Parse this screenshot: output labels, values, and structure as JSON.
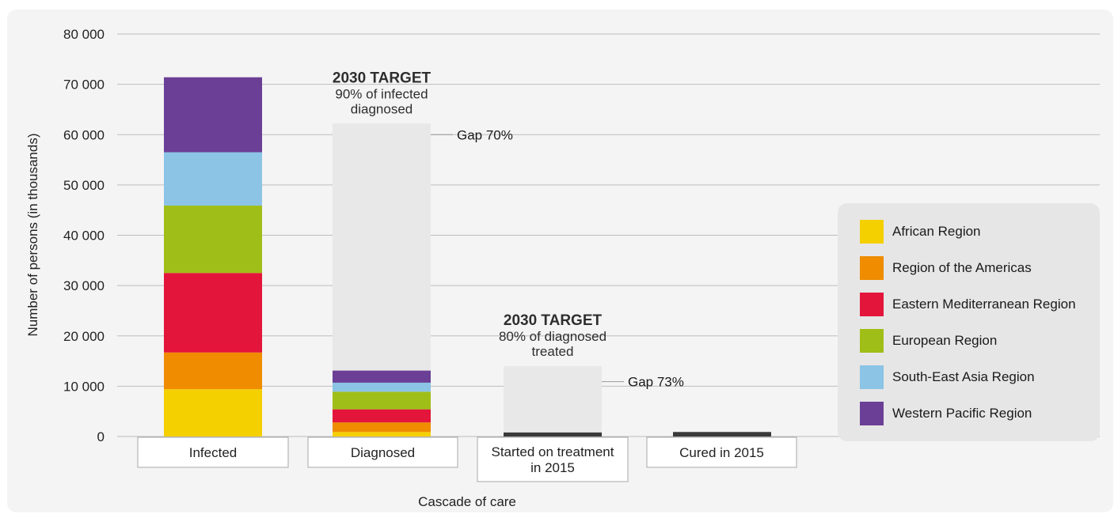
{
  "chart_data": {
    "type": "bar",
    "stacked": true,
    "ylabel": "Number of persons (in thousands)",
    "xlabel": "Cascade of care",
    "ylim": [
      0,
      80000
    ],
    "yticks": [
      0,
      10000,
      20000,
      30000,
      40000,
      50000,
      60000,
      70000,
      80000
    ],
    "ytick_labels": [
      "0",
      "10 000",
      "20 000",
      "30 000",
      "40 000",
      "50 000",
      "60 000",
      "70 000",
      "80 000"
    ],
    "grid": true,
    "legend_position": "right",
    "categories": [
      "Infected",
      "Diagnosed",
      "Started on treatment\nin 2015",
      "Cured in 2015"
    ],
    "series": [
      {
        "name": "African Region",
        "color": "#f5d000",
        "values": [
          9400,
          900,
          null,
          null
        ]
      },
      {
        "name": "Region of the Americas",
        "color": "#ef8c00",
        "values": [
          7300,
          1900,
          null,
          null
        ]
      },
      {
        "name": "Eastern Mediterranean Region",
        "color": "#e4153a",
        "values": [
          15800,
          2600,
          null,
          null
        ]
      },
      {
        "name": "European Region",
        "color": "#a0be18",
        "values": [
          13400,
          3500,
          null,
          null
        ]
      },
      {
        "name": "South-East Asia Region",
        "color": "#8bc4e5",
        "values": [
          10600,
          1800,
          null,
          null
        ]
      },
      {
        "name": "Western Pacific Region",
        "color": "#6b3f96",
        "values": [
          14900,
          2400,
          null,
          null
        ]
      }
    ],
    "totals_only": [
      {
        "category": "Started on treatment\nin 2015",
        "value": 800,
        "color": "#3a3a3a"
      },
      {
        "category": "Cured in 2015",
        "value": 900,
        "color": "#3a3a3a"
      }
    ],
    "targets": [
      {
        "category": "Diagnosed",
        "value": 62200,
        "color": "#e8e8e8",
        "title": "2030 TARGET",
        "text": "90% of infected\ndiagnosed",
        "gap_label": "Gap 70%",
        "gap_value": 60000
      },
      {
        "category": "Started on treatment\nin 2015",
        "value": 14000,
        "color": "#e8e8e8",
        "title": "2030 TARGET",
        "text": "80% of diagnosed\ntreated",
        "gap_label": "Gap 73%",
        "gap_value": 10900
      }
    ]
  }
}
